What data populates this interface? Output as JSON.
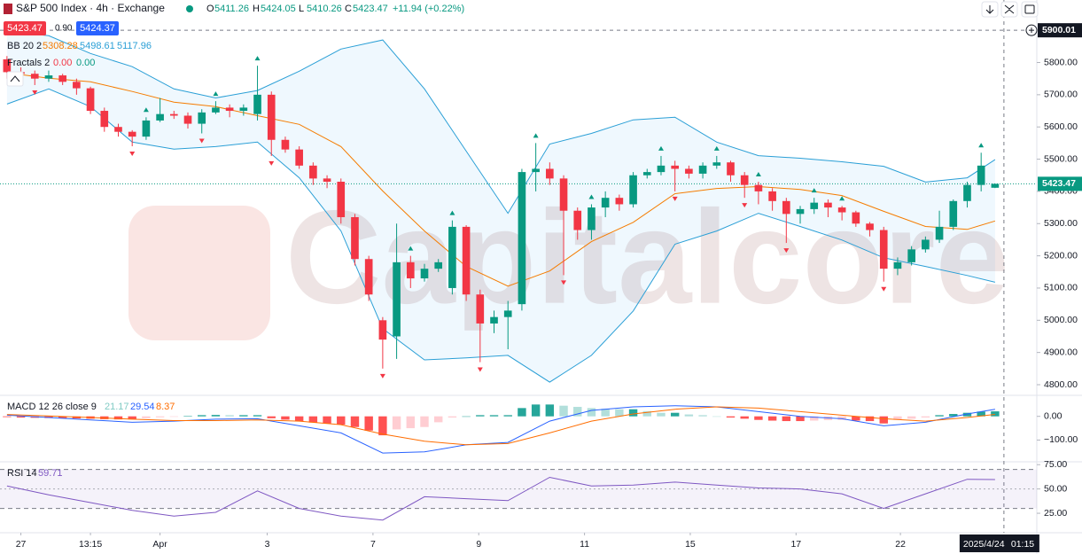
{
  "chart_data": {
    "type": "candlestick",
    "title": "S&P 500 Index · 4h · Exchange",
    "ohlc_labels": [
      "O",
      "H",
      "L",
      "C"
    ],
    "change": "+11.94 (+0.22%)",
    "spread": "0.90",
    "ask": 5424.37,
    "crosshair_price": 5900.01,
    "crosshair_date": "2025/4/24",
    "crosshair_time": "01:15",
    "watermark": "Capitalcore",
    "up_color": "#089981",
    "down_color": "#f23645",
    "xlim": [
      -0.5,
      74
    ],
    "ylim": [
      4767,
      5994
    ],
    "xticks": [
      {
        "value": 1,
        "label": "27"
      },
      {
        "value": 6,
        "label": "13:15"
      },
      {
        "value": 11,
        "label": "Apr"
      },
      {
        "value": 18.7,
        "label": "3"
      },
      {
        "value": 26.3,
        "label": "7"
      },
      {
        "value": 33.9,
        "label": "9"
      },
      {
        "value": 41.5,
        "label": "11"
      },
      {
        "value": 49.1,
        "label": "15"
      },
      {
        "value": 56.7,
        "label": "17"
      },
      {
        "value": 64.2,
        "label": "22"
      }
    ],
    "yticks": [
      {
        "value": 4800,
        "label": "4800.00"
      },
      {
        "value": 4900,
        "label": "4900.00"
      },
      {
        "value": 5000,
        "label": "5000.00"
      },
      {
        "value": 5100,
        "label": "5100.00"
      },
      {
        "value": 5200,
        "label": "5200.00"
      },
      {
        "value": 5300,
        "label": "5300.00"
      },
      {
        "value": 5400,
        "label": "5400.00"
      },
      {
        "value": 5500,
        "label": "5500.00"
      },
      {
        "value": 5600,
        "label": "5600.00"
      },
      {
        "value": 5700,
        "label": "5700.00"
      },
      {
        "value": 5800,
        "label": "5800.00"
      }
    ],
    "open": [
      5810,
      5770,
      5765,
      5750,
      5760,
      5740,
      5720,
      5650,
      5600,
      5585,
      5570,
      5620,
      5640,
      5635,
      5610,
      5645,
      5660,
      5650,
      5640,
      5700,
      5560,
      5530,
      5480,
      5440,
      5430,
      5320,
      5190,
      5000,
      4950,
      5180,
      5130,
      5160,
      5100,
      5290,
      5080,
      4990,
      5010,
      5050,
      5460,
      5470,
      5440,
      5340,
      5280,
      5350,
      5380,
      5360,
      5450,
      5460,
      5480,
      5470,
      5455,
      5480,
      5490,
      5450,
      5420,
      5400,
      5370,
      5330,
      5345,
      5365,
      5350,
      5335,
      5300,
      5280,
      5160,
      5180,
      5220,
      5250,
      5290,
      5370,
      5420,
      5411.26
    ],
    "high": [
      5820,
      5785,
      5775,
      5775,
      5765,
      5750,
      5725,
      5660,
      5610,
      5590,
      5630,
      5690,
      5650,
      5645,
      5655,
      5680,
      5670,
      5670,
      5790,
      5710,
      5570,
      5540,
      5490,
      5450,
      5440,
      5330,
      5200,
      5010,
      5300,
      5200,
      5175,
      5190,
      5310,
      5295,
      5095,
      5030,
      5060,
      5470,
      5550,
      5490,
      5450,
      5350,
      5360,
      5400,
      5390,
      5460,
      5470,
      5510,
      5495,
      5480,
      5490,
      5510,
      5495,
      5460,
      5430,
      5410,
      5380,
      5355,
      5380,
      5375,
      5355,
      5340,
      5305,
      5290,
      5195,
      5230,
      5260,
      5340,
      5375,
      5430,
      5520,
      5424.05
    ],
    "low": [
      5750,
      5740,
      5730,
      5740,
      5730,
      5700,
      5640,
      5585,
      5570,
      5540,
      5560,
      5615,
      5625,
      5595,
      5580,
      5640,
      5630,
      5635,
      5620,
      5510,
      5520,
      5470,
      5420,
      5410,
      5300,
      5170,
      5060,
      4850,
      4880,
      5100,
      5120,
      5150,
      5080,
      5060,
      4870,
      4960,
      4910,
      5030,
      5400,
      5420,
      5140,
      5250,
      5250,
      5320,
      5340,
      5350,
      5440,
      5450,
      5400,
      5440,
      5440,
      5470,
      5430,
      5380,
      5360,
      5340,
      5240,
      5300,
      5330,
      5320,
      5310,
      5290,
      5260,
      5120,
      5140,
      5170,
      5210,
      5240,
      5280,
      5350,
      5400,
      5410.26
    ],
    "close": [
      5770,
      5765,
      5750,
      5760,
      5740,
      5720,
      5650,
      5600,
      5585,
      5570,
      5620,
      5640,
      5635,
      5610,
      5645,
      5660,
      5650,
      5660,
      5700,
      5560,
      5530,
      5480,
      5440,
      5430,
      5320,
      5190,
      5080,
      4940,
      5180,
      5130,
      5160,
      5180,
      5290,
      5080,
      4990,
      5010,
      5030,
      5460,
      5470,
      5440,
      5340,
      5280,
      5350,
      5380,
      5360,
      5450,
      5460,
      5480,
      5470,
      5455,
      5480,
      5490,
      5450,
      5420,
      5400,
      5370,
      5330,
      5345,
      5365,
      5350,
      5335,
      5300,
      5280,
      5160,
      5180,
      5220,
      5250,
      5290,
      5370,
      5420,
      5480,
      5423.47
    ],
    "bb": {
      "name": "BB 20 2",
      "upper_color": "#2a9fd6",
      "middle_color": "#f57c00",
      "fill_color": "#2196f3",
      "x": [
        0,
        3,
        6,
        9,
        12,
        15,
        18,
        21,
        24,
        27,
        30,
        33,
        36,
        39,
        42,
        45,
        48,
        51,
        54,
        57,
        60,
        63,
        66,
        69,
        71
      ],
      "upper": [
        5897,
        5883,
        5828,
        5787,
        5718,
        5690,
        5713,
        5773,
        5842,
        5870,
        5718,
        5525,
        5332,
        5547,
        5580,
        5622,
        5630,
        5553,
        5511,
        5503,
        5492,
        5478,
        5429,
        5442,
        5498.61
      ],
      "middle": [
        5768,
        5751,
        5740,
        5710,
        5677,
        5663,
        5635,
        5608,
        5539,
        5401,
        5277,
        5167,
        5106,
        5153,
        5244,
        5304,
        5393,
        5409,
        5415,
        5406,
        5387,
        5338,
        5291,
        5282,
        5308.28
      ],
      "lower": [
        5671,
        5718,
        5663,
        5553,
        5531,
        5539,
        5553,
        5442,
        5277,
        4974,
        4877,
        4883,
        4891,
        4808,
        4891,
        5029,
        5236,
        5277,
        5332,
        5291,
        5249,
        5194,
        5167,
        5139,
        5117.96
      ]
    },
    "fractals": {
      "name": "Fractals 2",
      "legend_values": [
        "0.00",
        "0.00"
      ],
      "up": [
        10,
        15,
        18,
        29,
        32,
        38,
        42,
        47,
        51,
        54,
        58,
        60,
        70
      ],
      "down": [
        2,
        9,
        14,
        19,
        27,
        34,
        40,
        48,
        53,
        56,
        63
      ]
    },
    "macd": {
      "name": "MACD 12 26 close 9",
      "macd_color": "#2962ff",
      "signal_color": "#ff6d00",
      "ylim": [
        -192,
        85
      ],
      "yticks": [
        {
          "value": 0,
          "label": "0.00"
        },
        {
          "value": -100,
          "label": "−100.00"
        }
      ],
      "x": [
        0,
        3,
        6,
        9,
        12,
        15,
        18,
        21,
        24,
        27,
        30,
        33,
        36,
        39,
        42,
        45,
        48,
        51,
        54,
        57,
        60,
        63,
        66,
        69,
        71
      ],
      "macd": [
        5,
        -5,
        -15,
        -25,
        -20,
        -12,
        -10,
        -40,
        -70,
        -155,
        -150,
        -120,
        -110,
        -20,
        25,
        40,
        45,
        40,
        20,
        0,
        -10,
        -40,
        -25,
        10,
        29.54
      ],
      "signal": [
        8,
        2,
        -5,
        -12,
        -18,
        -18,
        -15,
        -20,
        -35,
        -75,
        -105,
        -120,
        -115,
        -70,
        -20,
        10,
        30,
        40,
        35,
        20,
        5,
        -10,
        -20,
        -5,
        8.37
      ],
      "histogram": [
        -3,
        -5,
        -6,
        -7,
        -8,
        -9,
        -10,
        -12,
        -13,
        -13,
        -8,
        -4,
        -2,
        2,
        5,
        6,
        5,
        5,
        5,
        -8,
        -14,
        -20,
        -26,
        -30,
        -35,
        -45,
        -60,
        -80,
        -55,
        -50,
        -45,
        -25,
        -5,
        0,
        5,
        5,
        5,
        35,
        50,
        50,
        45,
        40,
        35,
        32,
        30,
        30,
        22,
        15,
        15,
        8,
        5,
        0,
        -5,
        -10,
        -15,
        -18,
        -20,
        -20,
        -18,
        -16,
        -15,
        -18,
        -20,
        -30,
        -15,
        -10,
        -5,
        5,
        10,
        15,
        20,
        21.17
      ]
    },
    "rsi": {
      "name": "RSI 14",
      "color": "#7e57c2",
      "ylim": [
        5,
        77
      ],
      "yticks": [
        {
          "value": 75,
          "label": "75.00"
        },
        {
          "value": 50,
          "label": "50.00"
        },
        {
          "value": 25,
          "label": "25.00"
        }
      ],
      "band": [
        30,
        70
      ],
      "midline": 50,
      "x": [
        0,
        3,
        6,
        9,
        12,
        15,
        18,
        21,
        24,
        27,
        30,
        33,
        36,
        39,
        42,
        45,
        48,
        51,
        54,
        57,
        60,
        63,
        66,
        69,
        71
      ],
      "values": [
        53,
        44,
        36,
        28,
        22,
        26,
        48,
        30,
        22,
        18,
        42,
        40,
        38,
        62,
        53,
        54,
        57,
        54,
        51,
        50,
        45,
        30,
        45,
        60,
        59.71
      ]
    }
  }
}
